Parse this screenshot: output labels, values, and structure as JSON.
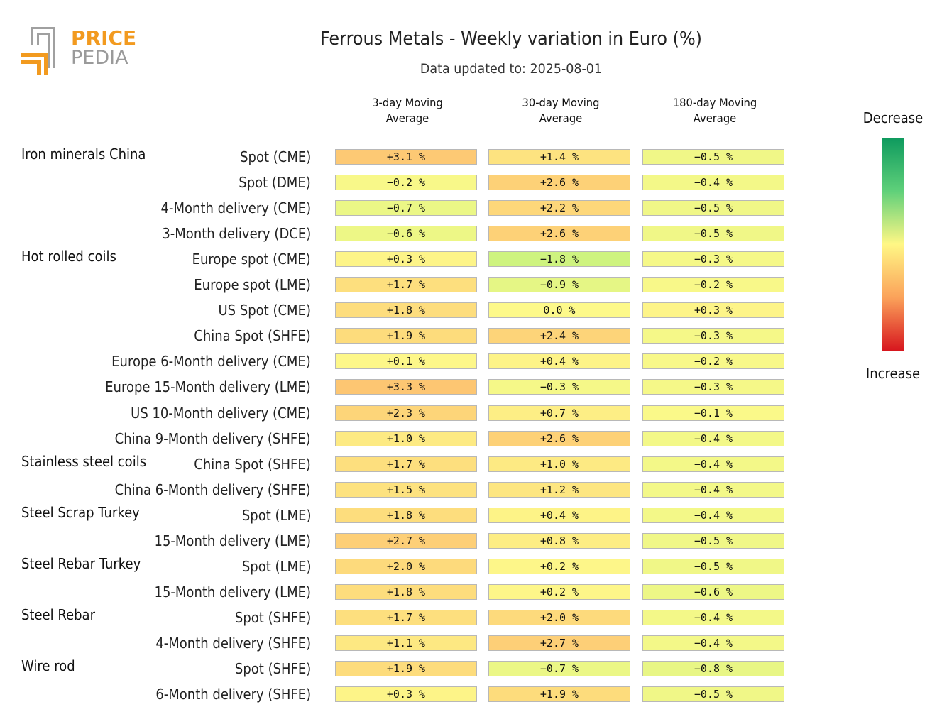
{
  "brand": {
    "line1": "PRICE",
    "line2": "PEDIA",
    "color_orange": "#f29a1f",
    "color_gray": "#9a9a9a"
  },
  "header": {
    "title": "Ferrous Metals - Weekly variation in Euro (%)",
    "subtitle": "Data updated to: 2025-08-01"
  },
  "legend": {
    "top_label": "Decrease",
    "bottom_label": "Increase"
  },
  "chart_data": {
    "type": "heatmap",
    "title": "Ferrous Metals - Weekly variation in Euro (%)",
    "subtitle": "Data updated to: 2025-08-01",
    "columns": [
      "3-day Moving|Average",
      "30-day Moving|Average",
      "180-day Moving|Average"
    ],
    "unit": "%",
    "groups": [
      {
        "name": "Iron minerals China",
        "rows": [
          {
            "label": "Spot (CME)",
            "values": [
              3.1,
              1.4,
              -0.5
            ]
          },
          {
            "label": "Spot (DME)",
            "values": [
              -0.2,
              2.6,
              -0.4
            ]
          },
          {
            "label": "4-Month delivery (CME)",
            "values": [
              -0.7,
              2.2,
              -0.5
            ]
          },
          {
            "label": "3-Month delivery (DCE)",
            "values": [
              -0.6,
              2.6,
              -0.5
            ]
          }
        ]
      },
      {
        "name": "Hot rolled coils",
        "rows": [
          {
            "label": "Europe spot (CME)",
            "values": [
              0.3,
              -1.8,
              -0.3
            ]
          },
          {
            "label": "Europe spot (LME)",
            "values": [
              1.7,
              -0.9,
              -0.2
            ]
          },
          {
            "label": "US Spot (CME)",
            "values": [
              1.8,
              0.0,
              0.3
            ]
          },
          {
            "label": "China Spot (SHFE)",
            "values": [
              1.9,
              2.4,
              -0.3
            ]
          },
          {
            "label": "Europe 6-Month delivery (CME)",
            "values": [
              0.1,
              0.4,
              -0.2
            ]
          },
          {
            "label": "Europe 15-Month delivery (LME)",
            "values": [
              3.3,
              -0.3,
              -0.3
            ]
          },
          {
            "label": "US 10-Month delivery (CME)",
            "values": [
              2.3,
              0.7,
              -0.1
            ]
          },
          {
            "label": "China 9-Month delivery (SHFE)",
            "values": [
              1.0,
              2.6,
              -0.4
            ]
          }
        ]
      },
      {
        "name": "Stainless steel coils",
        "rows": [
          {
            "label": "China Spot (SHFE)",
            "values": [
              1.7,
              1.0,
              -0.4
            ]
          },
          {
            "label": "China 6-Month delivery (SHFE)",
            "values": [
              1.5,
              1.2,
              -0.4
            ]
          }
        ]
      },
      {
        "name": "Steel Scrap Turkey",
        "rows": [
          {
            "label": "Spot (LME)",
            "values": [
              1.8,
              0.4,
              -0.4
            ]
          },
          {
            "label": "15-Month delivery (LME)",
            "values": [
              2.7,
              0.8,
              -0.5
            ]
          }
        ]
      },
      {
        "name": "Steel Rebar Turkey",
        "rows": [
          {
            "label": "Spot (LME)",
            "values": [
              2.0,
              0.2,
              -0.5
            ]
          },
          {
            "label": "15-Month delivery (LME)",
            "values": [
              1.8,
              0.2,
              -0.6
            ]
          }
        ]
      },
      {
        "name": "Steel Rebar",
        "rows": [
          {
            "label": "Spot (SHFE)",
            "values": [
              1.7,
              2.0,
              -0.4
            ]
          },
          {
            "label": "4-Month delivery (SHFE)",
            "values": [
              1.1,
              2.7,
              -0.4
            ]
          }
        ]
      },
      {
        "name": "Wire rod",
        "rows": [
          {
            "label": "Spot (SHFE)",
            "values": [
              1.9,
              -0.7,
              -0.8
            ]
          },
          {
            "label": "6-Month delivery (SHFE)",
            "values": [
              0.3,
              1.9,
              -0.5
            ]
          }
        ]
      }
    ],
    "colorscale": {
      "decrease": "#0e9a5e",
      "neutral": "#fff785",
      "increase": "#d7161e"
    },
    "legend_position": "right"
  }
}
